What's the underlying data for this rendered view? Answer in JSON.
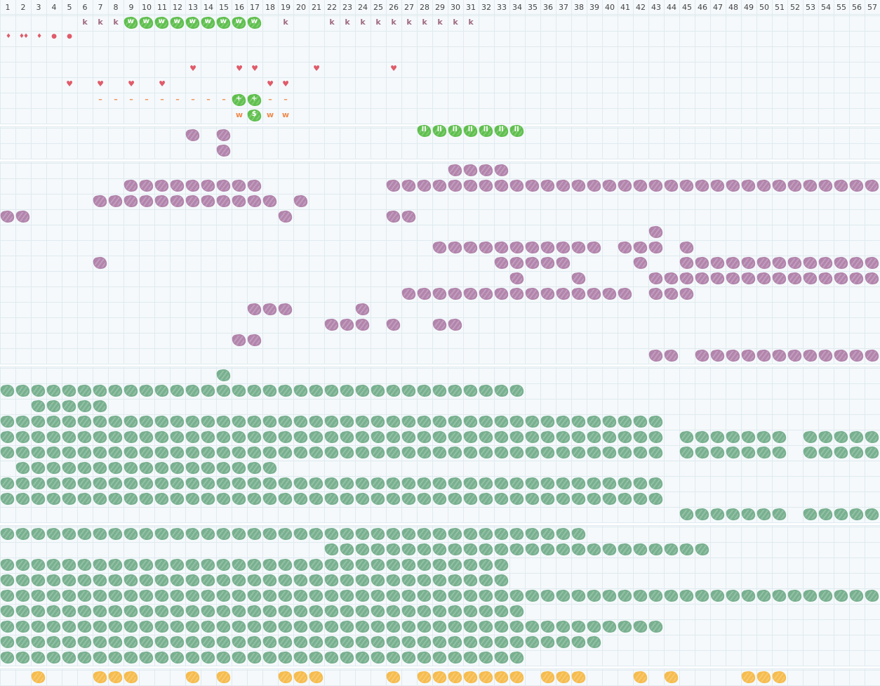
{
  "header": {
    "columns": [
      "1",
      "2",
      "3",
      "4",
      "5",
      "6",
      "7",
      "8",
      "9",
      "10",
      "11",
      "12",
      "13",
      "14",
      "15",
      "16",
      "17",
      "18",
      "19",
      "20",
      "21",
      "22",
      "23",
      "24",
      "25",
      "26",
      "27",
      "28",
      "29",
      "30",
      "31",
      "32",
      "33",
      "34",
      "35",
      "36",
      "37",
      "38",
      "39",
      "40",
      "41",
      "42",
      "43",
      "44",
      "45",
      "46",
      "47",
      "48",
      "49",
      "50",
      "51",
      "52",
      "53",
      "54",
      "55",
      "56",
      "57"
    ]
  },
  "colors": {
    "grid_line": "#dfeaef",
    "background": "#f5f9fb",
    "brand_green": "#5fbf4e",
    "purple": "#b284ac",
    "teal_green": "#78b08f",
    "orange": "#f6bc4d",
    "red": "#e05b6a",
    "orange_text": "#ef8a4c",
    "k_text": "#a06a80"
  },
  "glyph_markers": [
    {
      "row": 0,
      "cols": [
        6,
        7,
        8,
        19,
        22,
        23,
        24,
        25,
        26,
        27,
        28,
        29,
        30,
        31
      ],
      "symbol": "k",
      "color": "#a06a80"
    },
    {
      "row": 1,
      "cols": [
        1
      ],
      "symbol": "♦",
      "color": "#e05b6a"
    },
    {
      "row": 1,
      "cols": [
        2
      ],
      "symbol": "♦♦",
      "color": "#e05b6a"
    },
    {
      "row": 1,
      "cols": [
        3
      ],
      "symbol": "♦",
      "color": "#e05b6a"
    },
    {
      "row": 1,
      "cols": [
        4,
        5
      ],
      "symbol": "●",
      "color": "#e05b6a"
    },
    {
      "row": 3,
      "cols": [
        13,
        16,
        17,
        21,
        26
      ],
      "symbol": "♥",
      "color": "#e05b6a"
    },
    {
      "row": 4,
      "cols": [
        5,
        7,
        9,
        11,
        18,
        19
      ],
      "symbol": "♥",
      "color": "#e05b6a"
    },
    {
      "row": 5,
      "cols": [
        7,
        8,
        9,
        10,
        11,
        12,
        13,
        14,
        15,
        18,
        19
      ],
      "symbol": "–",
      "color": "#ef8a4c"
    },
    {
      "row": 6,
      "cols": [
        16,
        18,
        19
      ],
      "symbol": "w",
      "color": "#ef8a4c"
    }
  ],
  "pill_markers": [
    {
      "row": 0,
      "cols": [
        9,
        10,
        11,
        12,
        13,
        14,
        15,
        16,
        17
      ],
      "label": "w",
      "color": "#5fbf4e"
    },
    {
      "row": 5,
      "cols": [
        16,
        17
      ],
      "label": "+",
      "color": "#5fbf4e"
    },
    {
      "row": 6,
      "cols": [
        17
      ],
      "label": "$",
      "color": "#5fbf4e"
    },
    {
      "row": 7,
      "cols": [
        28,
        29,
        30,
        31,
        32,
        33,
        34
      ],
      "label": "ll",
      "color": "#5fbf4e"
    }
  ],
  "blob_rows": [
    {
      "section": 1,
      "row": 0,
      "color": "purple",
      "ranges": [
        [
          13,
          13
        ],
        [
          15,
          15
        ]
      ]
    },
    {
      "section": 1,
      "row": 1,
      "color": "purple",
      "ranges": [
        [
          15,
          15
        ]
      ]
    },
    {
      "section": 2,
      "row": 0,
      "color": "purple",
      "ranges": [
        [
          30,
          33
        ]
      ]
    },
    {
      "section": 2,
      "row": 1,
      "color": "purple",
      "ranges": [
        [
          9,
          17
        ],
        [
          26,
          57
        ]
      ]
    },
    {
      "section": 2,
      "row": 2,
      "color": "purple",
      "ranges": [
        [
          7,
          18
        ],
        [
          20,
          20
        ]
      ]
    },
    {
      "section": 2,
      "row": 3,
      "color": "purple",
      "ranges": [
        [
          1,
          2
        ],
        [
          19,
          19
        ],
        [
          26,
          27
        ]
      ]
    },
    {
      "section": 2,
      "row": 4,
      "color": "purple",
      "ranges": [
        [
          43,
          43
        ]
      ]
    },
    {
      "section": 2,
      "row": 5,
      "color": "purple",
      "ranges": [
        [
          29,
          39
        ],
        [
          41,
          43
        ],
        [
          45,
          45
        ]
      ]
    },
    {
      "section": 2,
      "row": 6,
      "color": "purple",
      "ranges": [
        [
          7,
          7
        ],
        [
          33,
          37
        ],
        [
          42,
          42
        ],
        [
          45,
          57
        ]
      ]
    },
    {
      "section": 2,
      "row": 7,
      "color": "purple",
      "ranges": [
        [
          34,
          34
        ],
        [
          38,
          38
        ],
        [
          43,
          57
        ]
      ]
    },
    {
      "section": 2,
      "row": 8,
      "color": "purple",
      "ranges": [
        [
          27,
          41
        ],
        [
          43,
          45
        ]
      ]
    },
    {
      "section": 2,
      "row": 9,
      "color": "purple",
      "ranges": [
        [
          17,
          19
        ],
        [
          24,
          24
        ]
      ]
    },
    {
      "section": 2,
      "row": 10,
      "color": "purple",
      "ranges": [
        [
          22,
          24
        ],
        [
          26,
          26
        ],
        [
          29,
          30
        ]
      ]
    },
    {
      "section": 2,
      "row": 11,
      "color": "purple",
      "ranges": [
        [
          16,
          17
        ]
      ]
    },
    {
      "section": 2,
      "row": 12,
      "color": "purple",
      "ranges": [
        [
          43,
          44
        ],
        [
          46,
          57
        ]
      ]
    },
    {
      "section": 3,
      "row": 0,
      "color": "teal_green",
      "ranges": [
        [
          15,
          15
        ]
      ]
    },
    {
      "section": 3,
      "row": 1,
      "color": "teal_green",
      "ranges": [
        [
          1,
          34
        ]
      ]
    },
    {
      "section": 3,
      "row": 2,
      "color": "teal_green",
      "ranges": [
        [
          3,
          7
        ]
      ]
    },
    {
      "section": 3,
      "row": 3,
      "color": "teal_green",
      "ranges": [
        [
          1,
          43
        ]
      ]
    },
    {
      "section": 3,
      "row": 4,
      "color": "teal_green",
      "ranges": [
        [
          1,
          43
        ],
        [
          45,
          51
        ],
        [
          53,
          57
        ]
      ]
    },
    {
      "section": 3,
      "row": 5,
      "color": "teal_green",
      "ranges": [
        [
          1,
          43
        ],
        [
          45,
          51
        ],
        [
          53,
          57
        ]
      ]
    },
    {
      "section": 3,
      "row": 6,
      "color": "teal_green",
      "ranges": [
        [
          2,
          18
        ]
      ]
    },
    {
      "section": 3,
      "row": 7,
      "color": "teal_green",
      "ranges": [
        [
          1,
          43
        ]
      ]
    },
    {
      "section": 3,
      "row": 8,
      "color": "teal_green",
      "ranges": [
        [
          1,
          43
        ]
      ]
    },
    {
      "section": 3,
      "row": 9,
      "color": "teal_green",
      "ranges": [
        [
          45,
          51
        ],
        [
          53,
          57
        ]
      ]
    },
    {
      "section": 4,
      "row": 0,
      "color": "teal_green",
      "ranges": [
        [
          1,
          38
        ]
      ]
    },
    {
      "section": 4,
      "row": 1,
      "color": "teal_green",
      "ranges": [
        [
          22,
          46
        ]
      ]
    },
    {
      "section": 4,
      "row": 2,
      "color": "teal_green",
      "ranges": [
        [
          1,
          33
        ]
      ]
    },
    {
      "section": 4,
      "row": 3,
      "color": "teal_green",
      "ranges": [
        [
          1,
          33
        ]
      ]
    },
    {
      "section": 4,
      "row": 4,
      "color": "teal_green",
      "ranges": [
        [
          1,
          57
        ]
      ]
    },
    {
      "section": 4,
      "row": 5,
      "color": "teal_green",
      "ranges": [
        [
          1,
          34
        ]
      ]
    },
    {
      "section": 4,
      "row": 6,
      "color": "teal_green",
      "ranges": [
        [
          1,
          43
        ]
      ]
    },
    {
      "section": 4,
      "row": 7,
      "color": "teal_green",
      "ranges": [
        [
          1,
          39
        ]
      ]
    },
    {
      "section": 4,
      "row": 8,
      "color": "teal_green",
      "ranges": [
        [
          1,
          34
        ]
      ]
    },
    {
      "section": 5,
      "row": 0,
      "color": "orange",
      "ranges": [
        [
          3,
          3
        ],
        [
          7,
          9
        ],
        [
          13,
          13
        ],
        [
          15,
          15
        ],
        [
          19,
          21
        ],
        [
          26,
          26
        ],
        [
          28,
          34
        ],
        [
          36,
          38
        ],
        [
          42,
          42
        ],
        [
          44,
          44
        ],
        [
          49,
          51
        ]
      ]
    }
  ]
}
